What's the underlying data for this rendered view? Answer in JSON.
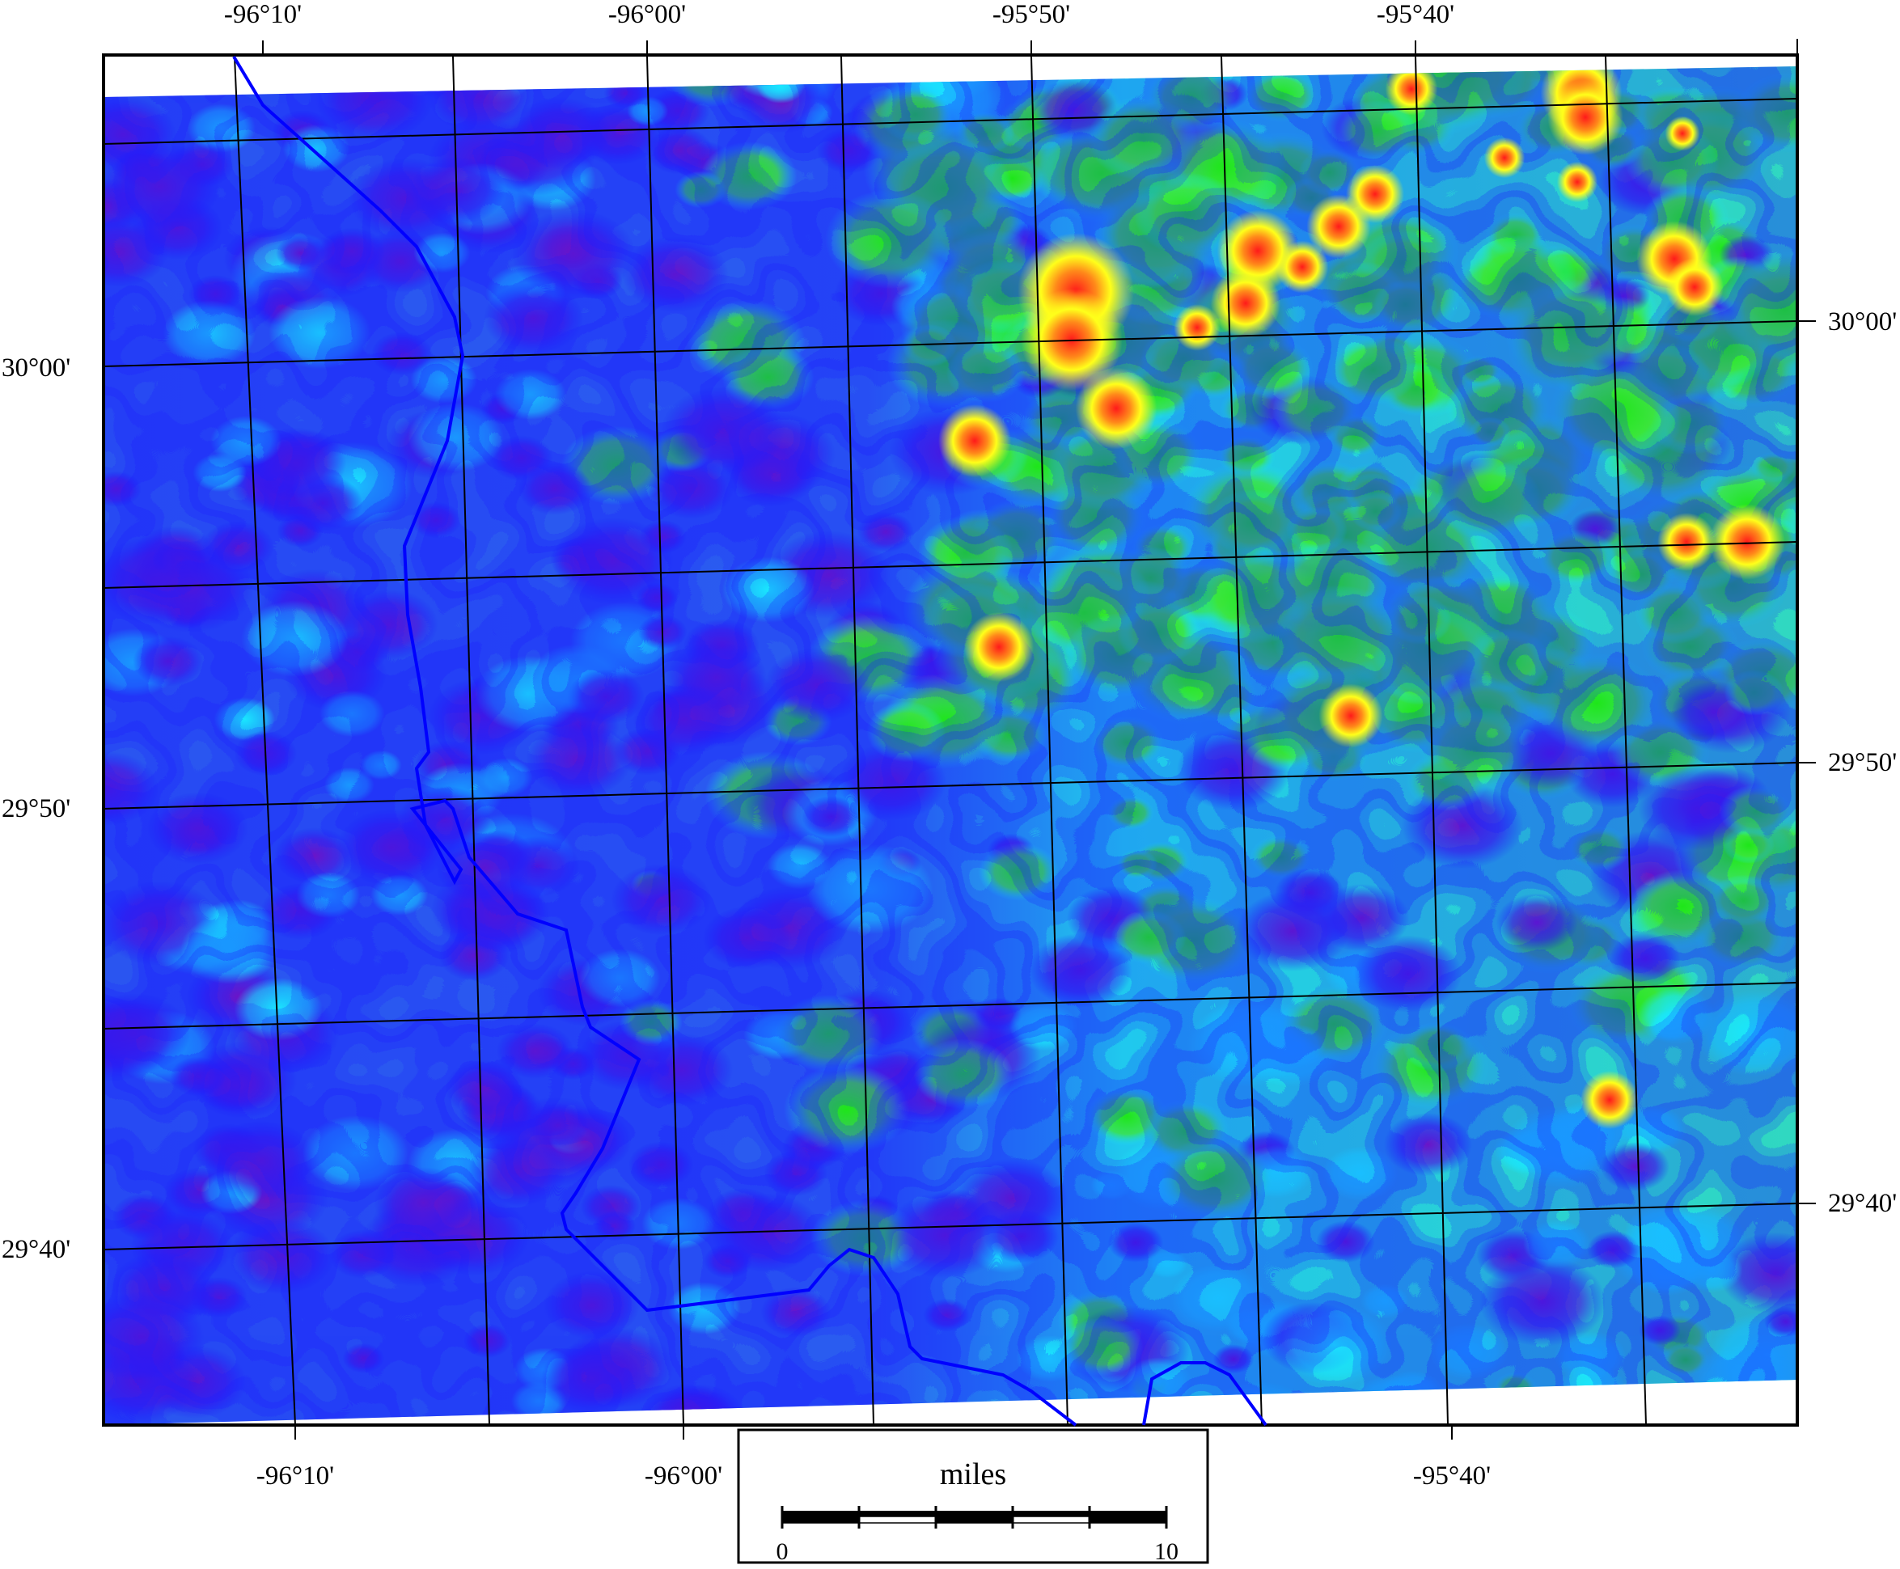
{
  "map": {
    "type": "geophysical anomaly map",
    "colormap": [
      "#5a10c8",
      "#1a1aff",
      "#19e6ff",
      "#1ee619",
      "#ffff1a",
      "#ff1a1a"
    ],
    "overlay_line_color": "#0000ff",
    "graticule_color": "#000000"
  },
  "top_labels": [
    "-96°10'",
    "-96°00'",
    "-95°50'",
    "-95°40'"
  ],
  "bottom_labels": [
    "-96°10'",
    "-96°00'",
    "-95°40'"
  ],
  "left_labels": [
    "30°00'",
    "29°50'",
    "29°40'"
  ],
  "right_labels": [
    "30°00'",
    "29°50'",
    "29°40'"
  ],
  "scale_bar": {
    "title": "miles",
    "start_label": "0",
    "end_label": "10",
    "segments": 5
  }
}
